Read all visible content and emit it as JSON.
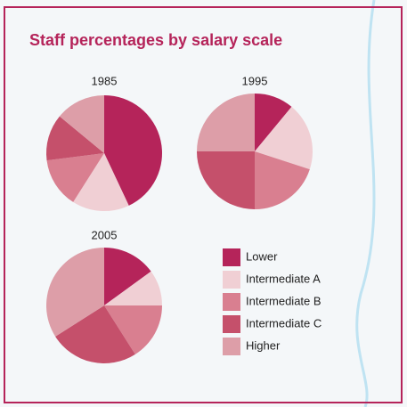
{
  "chart_data": {
    "type": "pie",
    "title": "Staff percentages by salary scale",
    "categories": [
      "Lower",
      "Intermediate A",
      "Intermediate B",
      "Intermediate C",
      "Higher"
    ],
    "colors": [
      "#b5245a",
      "#f0cfd4",
      "#d97f90",
      "#c5506b",
      "#dd9ea8"
    ],
    "series": [
      {
        "name": "1985",
        "values": [
          43,
          16,
          14,
          13,
          14
        ]
      },
      {
        "name": "1995",
        "values": [
          11,
          19,
          20,
          25,
          25
        ]
      },
      {
        "name": "2005",
        "values": [
          15,
          10,
          16,
          25,
          34
        ]
      }
    ]
  }
}
